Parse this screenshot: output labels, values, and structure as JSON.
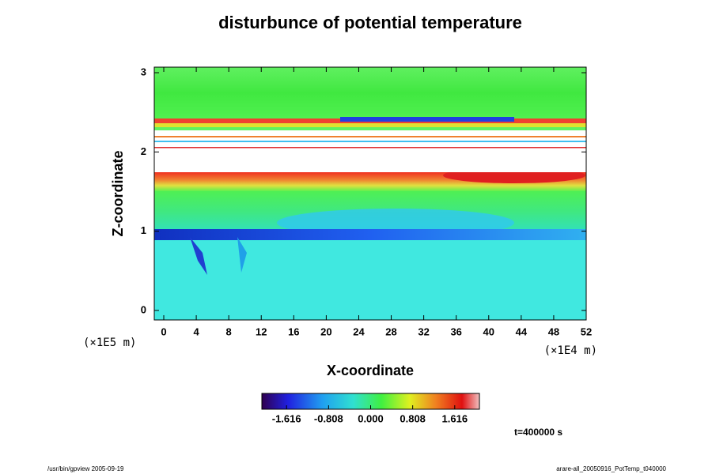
{
  "chart_data": {
    "type": "field",
    "title": "disturbunce of potential temperature",
    "x_label": "X-coordinate",
    "y_label": "Z-coordinate",
    "x_unit": "(×1E4 m)",
    "y_unit": "(×1E5 m)",
    "time_label": "t=400000 s",
    "footer_left": "/usr/bin/gpview 2005-09-19",
    "footer_right": "arare-all_20050916_PotTemp_t040000",
    "xlim": [
      -1.17,
      52
    ],
    "xticks": [
      0,
      4,
      8,
      12,
      16,
      20,
      24,
      28,
      32,
      36,
      40,
      44,
      48,
      52
    ],
    "ylim": [
      -0.12,
      3.07
    ],
    "yticks": [
      0,
      1,
      2,
      3
    ],
    "clim": [
      -2.09,
      2.09
    ],
    "cticks": [
      -1.616,
      -0.808,
      {
        "value": 0,
        "label": "0.000"
      },
      0.808,
      1.616
    ]
  }
}
